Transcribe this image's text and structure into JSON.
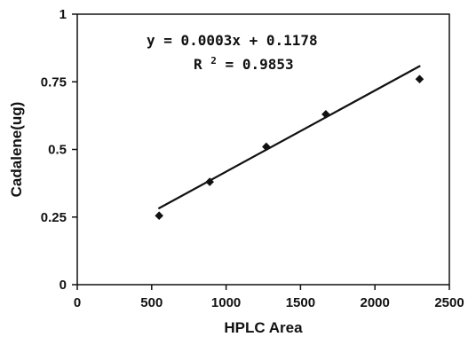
{
  "chart_data": {
    "type": "scatter",
    "title": "",
    "xlabel": "HPLC Area",
    "ylabel": "Cadalene(ug)",
    "xlim": [
      0,
      2500
    ],
    "ylim": [
      0,
      1
    ],
    "xticks": [
      0,
      500,
      1000,
      1500,
      2000,
      2500
    ],
    "yticks": [
      0,
      0.25,
      0.5,
      0.75,
      1
    ],
    "xtick_labels": [
      "0",
      "500",
      "1000",
      "1500",
      "2000",
      "2500"
    ],
    "ytick_labels": [
      "0",
      "0.25",
      "0.5",
      "0.75",
      "1"
    ],
    "grid": false,
    "legend": false,
    "marker": "diamond",
    "series": [
      {
        "x": [
          550,
          890,
          1270,
          1670,
          2300
        ],
        "y": [
          0.255,
          0.38,
          0.51,
          0.63,
          0.76
        ]
      }
    ],
    "trendline": {
      "slope": 0.0003,
      "intercept": 0.1178,
      "x_range": [
        550,
        2300
      ],
      "equation_main": "y = 0.0003x + 0.1178",
      "r2_prefix": "R",
      "r2_sup": "2",
      "r2_rest": " = 0.9853"
    },
    "colors": {
      "line": "#111111",
      "marker": "#111111",
      "text": "#111111",
      "background": "#ffffff"
    }
  }
}
